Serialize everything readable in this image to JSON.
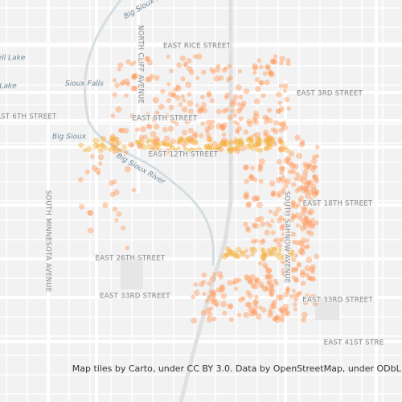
{
  "map": {
    "labels": [
      {
        "text": "Big Sioux Ri"
      },
      {
        "text": "NORTH CLIFF AVENUE"
      },
      {
        "text": "EAST RICE STREET"
      },
      {
        "text": "ell Lake"
      },
      {
        "text": "Lake"
      },
      {
        "text": "Sioux Falls"
      },
      {
        "text": "EAST 3RD STREET"
      },
      {
        "text": "EAST 6TH STREET"
      },
      {
        "text": "EAST 6TH STREET"
      },
      {
        "text": "Big Sioux"
      },
      {
        "text": "EAST 12TH STREET"
      },
      {
        "text": "Big Sioux River"
      },
      {
        "text": "EAST 18TH STREET"
      },
      {
        "text": "SOUTH MINNESOTA AVENUE"
      },
      {
        "text": "SOUTH SAHNOW AVENUE"
      },
      {
        "text": "EAST 26TH STREET"
      },
      {
        "text": "EAST 33RD STREET"
      },
      {
        "text": "EAST 33RD STREET"
      },
      {
        "text": "EAST 41ST STRE"
      }
    ],
    "attribution": "Map tiles by Carto, under CC BY 3.0. Data by OpenStreetMap, under ODbL."
  }
}
